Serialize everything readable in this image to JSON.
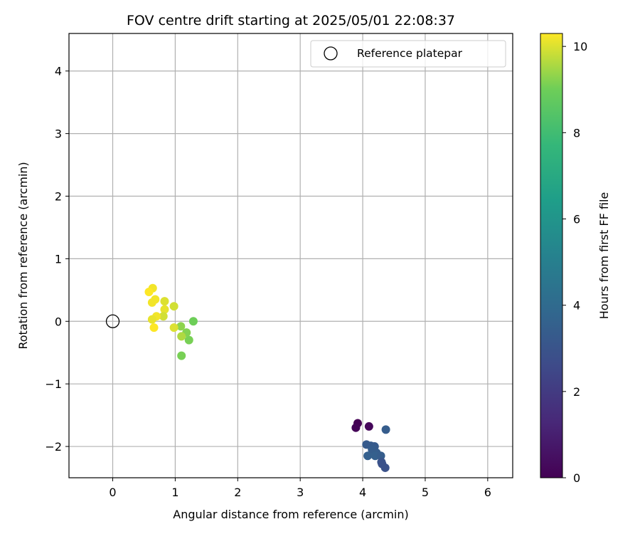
{
  "chart_data": {
    "type": "scatter",
    "title": "FOV centre drift starting at 2025/05/01 22:08:37",
    "xlabel": "Angular distance from reference (arcmin)",
    "ylabel": "Rotation from reference (arcmin)",
    "xlim": [
      -0.7,
      6.4
    ],
    "ylim": [
      -2.5,
      4.6
    ],
    "xticks": [
      0,
      1,
      2,
      3,
      4,
      5,
      6
    ],
    "yticks": [
      -2,
      -1,
      0,
      1,
      2,
      3,
      4
    ],
    "grid": true,
    "legend": {
      "placement": "top-right",
      "entries": [
        {
          "label": "Reference platepar",
          "marker": "open-circle",
          "x": 0,
          "y": 0
        }
      ]
    },
    "colorbar": {
      "label": "Hours from first FF file",
      "range": [
        0,
        10.3
      ],
      "ticks": [
        0,
        2,
        4,
        6,
        8,
        10
      ],
      "colormap": "viridis"
    },
    "points": [
      {
        "x": 3.92,
        "y": -1.63,
        "c": 0.0
      },
      {
        "x": 3.89,
        "y": -1.7,
        "c": 0.1
      },
      {
        "x": 4.1,
        "y": -1.68,
        "c": 0.2
      },
      {
        "x": 4.37,
        "y": -1.73,
        "c": 3.4
      },
      {
        "x": 4.06,
        "y": -1.97,
        "c": 3.3
      },
      {
        "x": 4.13,
        "y": -1.99,
        "c": 3.3
      },
      {
        "x": 4.19,
        "y": -2.0,
        "c": 3.3
      },
      {
        "x": 4.15,
        "y": -2.05,
        "c": 3.4
      },
      {
        "x": 4.22,
        "y": -2.1,
        "c": 3.4
      },
      {
        "x": 4.08,
        "y": -2.15,
        "c": 3.5
      },
      {
        "x": 4.2,
        "y": -2.15,
        "c": 3.5
      },
      {
        "x": 4.29,
        "y": -2.15,
        "c": 3.4
      },
      {
        "x": 4.3,
        "y": -2.25,
        "c": 3.0
      },
      {
        "x": 4.31,
        "y": -2.28,
        "c": 2.9
      },
      {
        "x": 4.36,
        "y": -2.34,
        "c": 2.9
      },
      {
        "x": 1.29,
        "y": 0.0,
        "c": 9.0
      },
      {
        "x": 1.22,
        "y": -0.3,
        "c": 9.1
      },
      {
        "x": 1.18,
        "y": -0.18,
        "c": 9.2
      },
      {
        "x": 1.1,
        "y": -0.55,
        "c": 9.1
      },
      {
        "x": 1.09,
        "y": -0.08,
        "c": 9.3
      },
      {
        "x": 1.1,
        "y": -0.24,
        "c": 9.6
      },
      {
        "x": 0.98,
        "y": -0.1,
        "c": 10.0
      },
      {
        "x": 0.98,
        "y": 0.24,
        "c": 9.9
      },
      {
        "x": 0.83,
        "y": 0.32,
        "c": 10.0
      },
      {
        "x": 0.83,
        "y": 0.19,
        "c": 10.1
      },
      {
        "x": 0.81,
        "y": 0.08,
        "c": 9.9
      },
      {
        "x": 0.7,
        "y": 0.08,
        "c": 10.2
      },
      {
        "x": 0.68,
        "y": 0.35,
        "c": 10.2
      },
      {
        "x": 0.63,
        "y": 0.03,
        "c": 10.1
      },
      {
        "x": 0.66,
        "y": -0.1,
        "c": 10.3
      },
      {
        "x": 0.63,
        "y": 0.3,
        "c": 10.2
      },
      {
        "x": 0.64,
        "y": 0.53,
        "c": 10.2
      },
      {
        "x": 0.58,
        "y": 0.47,
        "c": 10.3
      }
    ]
  }
}
